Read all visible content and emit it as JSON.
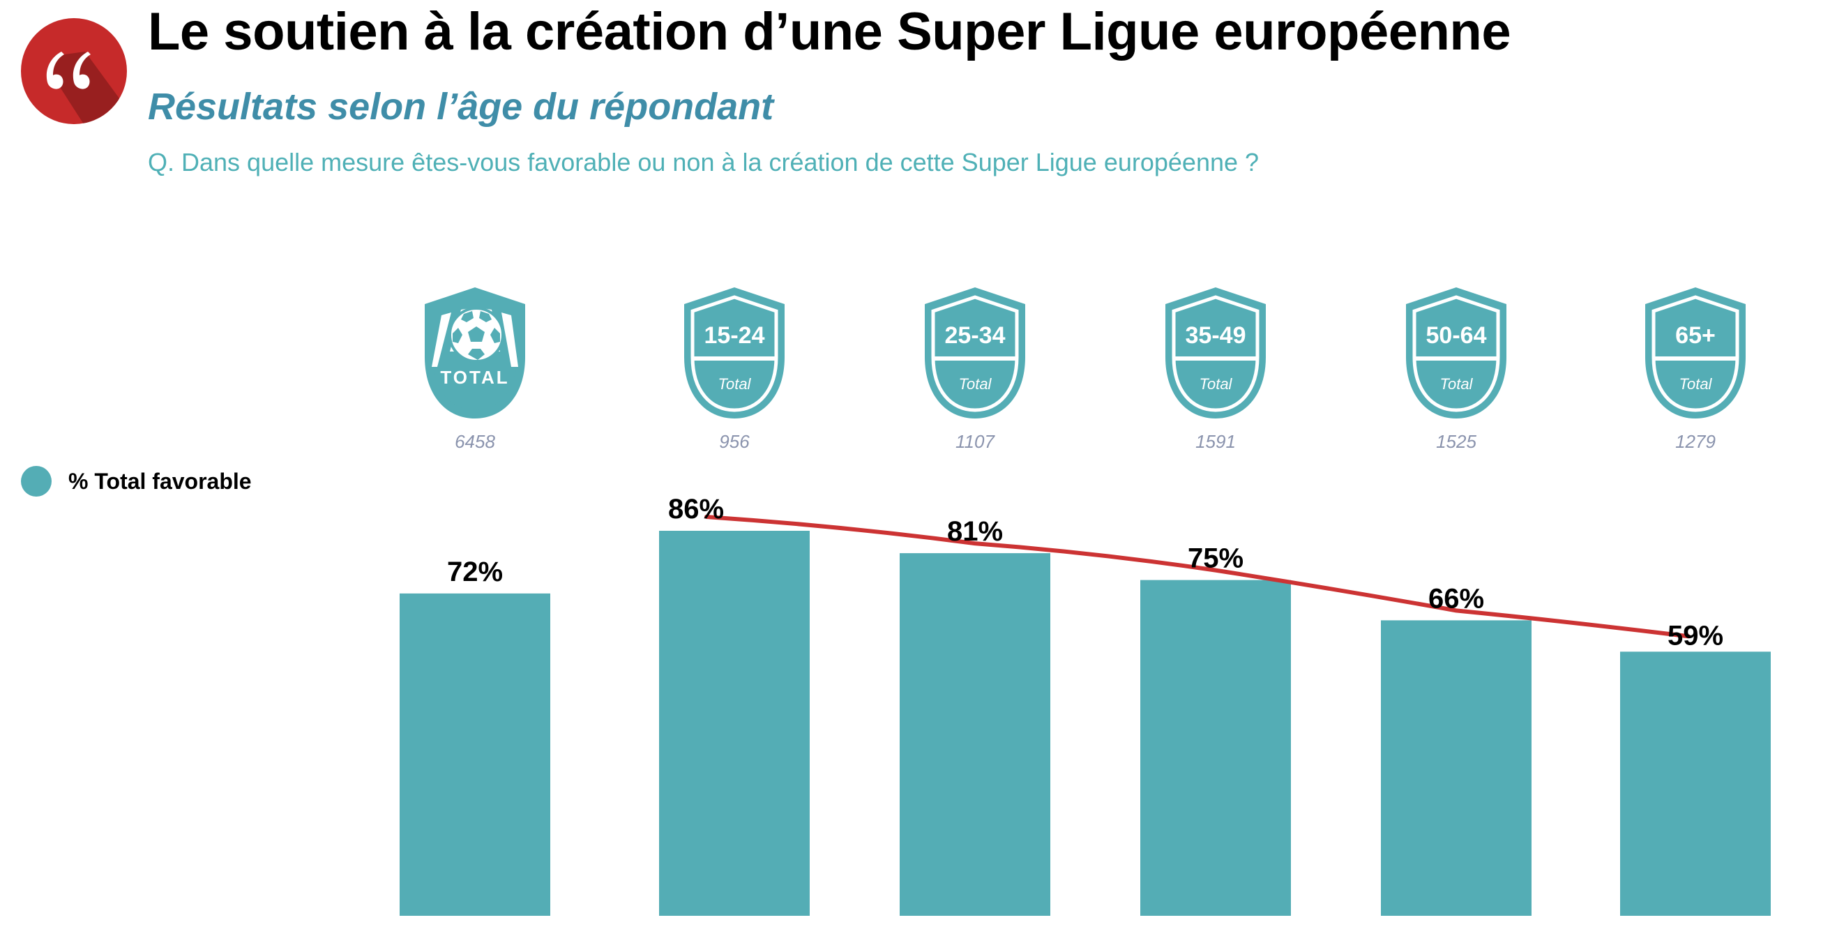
{
  "header": {
    "title": "Le soutien à la création d’une Super Ligue européenne",
    "subtitle": "Résultats selon l’âge du répondant",
    "question": "Q. Dans quelle mesure êtes-vous favorable ou non à la création de cette Super Ligue européenne ?",
    "logo_icon": "quote-icon"
  },
  "colors": {
    "bar": "#54adb5",
    "trend_line": "#cc3333",
    "logo": "#c62a2a",
    "subtitle": "#3f8da8",
    "question": "#4fb0b6",
    "count": "#8a93ad"
  },
  "legend": {
    "label": "% Total favorable"
  },
  "groups": [
    {
      "badge_main": "TOTAL",
      "badge_sub": "",
      "icon": "soccer-ball-icon",
      "count": "6458"
    },
    {
      "badge_main": "15-24",
      "badge_sub": "Total",
      "count": "956"
    },
    {
      "badge_main": "25-34",
      "badge_sub": "Total",
      "count": "1107"
    },
    {
      "badge_main": "35-49",
      "badge_sub": "Total",
      "count": "1591"
    },
    {
      "badge_main": "50-64",
      "badge_sub": "Total",
      "count": "1525"
    },
    {
      "badge_main": "65+",
      "badge_sub": "Total",
      "count": "1279"
    }
  ],
  "chart_data": {
    "type": "bar",
    "title": "Le soutien à la création d’une Super Ligue européenne",
    "subtitle": "Résultats selon l’âge du répondant",
    "categories": [
      "Total",
      "15-24",
      "25-34",
      "35-49",
      "50-64",
      "65+"
    ],
    "series": [
      {
        "name": "% Total favorable",
        "values": [
          72,
          86,
          81,
          75,
          66,
          59
        ]
      }
    ],
    "data_labels": [
      "72%",
      "86%",
      "81%",
      "75%",
      "66%",
      "59%"
    ],
    "sample_sizes": [
      6458,
      956,
      1107,
      1591,
      1525,
      1279
    ],
    "trend_line": {
      "from": "15-24",
      "to": "65+",
      "shape": "curved decreasing"
    },
    "xlabel": "",
    "ylabel": "",
    "ylim": [
      0,
      86
    ],
    "grid": false,
    "legend_position": "left"
  }
}
